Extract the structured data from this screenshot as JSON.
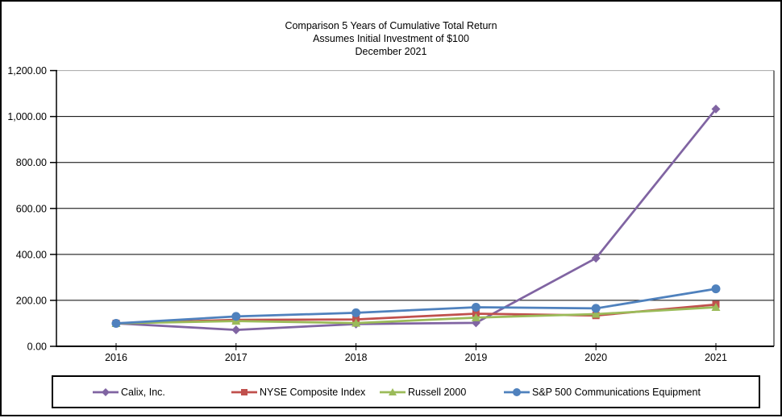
{
  "title": {
    "line1": "Comparison 5 Years of Cumulative Total Return",
    "line2": "Assumes Initial Investment of $100",
    "line3": "December 2021"
  },
  "chart_data": {
    "type": "line",
    "title": "Comparison 5 Years of Cumulative Total Return",
    "subtitle": "Assumes Initial Investment of $100",
    "date_label": "December 2021",
    "categories": [
      "2016",
      "2017",
      "2018",
      "2019",
      "2020",
      "2021"
    ],
    "series": [
      {
        "name": "Calix, Inc.",
        "color": "#8064A2",
        "marker": "diamond",
        "values": [
          100.0,
          71.61,
          97.03,
          102.19,
          383.48,
          1032.77
        ]
      },
      {
        "name": "NYSE Composite Index",
        "color": "#C0504D",
        "marker": "square",
        "values": [
          100.0,
          115.0,
          117.0,
          142.0,
          134.0,
          182.0
        ]
      },
      {
        "name": "Russell 2000",
        "color": "#9BBB59",
        "marker": "triangle",
        "values": [
          100.0,
          110.0,
          101.0,
          125.0,
          140.0,
          170.0
        ]
      },
      {
        "name": "S&P 500 Communications Equipment",
        "color": "#4F81BD",
        "marker": "circle",
        "values": [
          100.0,
          130.0,
          146.0,
          170.0,
          165.0,
          250.0
        ]
      }
    ],
    "xlabel": "",
    "ylabel": "",
    "ylim": [
      0,
      1200
    ],
    "y_tick_labels": [
      "1,200.00",
      "1,000.00",
      "800.00",
      "600.00",
      "400.00",
      "200.00",
      "0.00"
    ],
    "y_tick_values": [
      1200,
      1000,
      800,
      600,
      400,
      200,
      0
    ],
    "grid": true,
    "legend_position": "bottom",
    "colors": {
      "axis": "#000000",
      "gridline": "#000000",
      "plot_top_border": "#A6A6A6"
    }
  }
}
